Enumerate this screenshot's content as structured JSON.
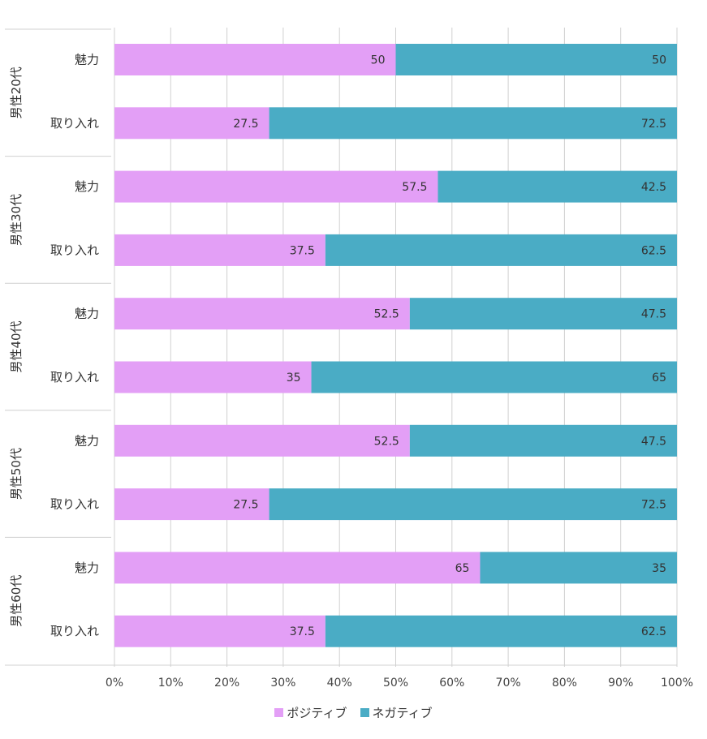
{
  "chart_data": {
    "type": "bar",
    "orientation": "horizontal",
    "stacked": true,
    "percent": true,
    "groups": [
      {
        "label": "男性20代",
        "rows": [
          {
            "label": "魅力",
            "values": [
              50,
              50
            ]
          },
          {
            "label": "取り入れ",
            "values": [
              27.5,
              72.5
            ]
          }
        ]
      },
      {
        "label": "男性30代",
        "rows": [
          {
            "label": "魅力",
            "values": [
              57.5,
              42.5
            ]
          },
          {
            "label": "取り入れ",
            "values": [
              37.5,
              62.5
            ]
          }
        ]
      },
      {
        "label": "男性40代",
        "rows": [
          {
            "label": "魅力",
            "values": [
              52.5,
              47.5
            ]
          },
          {
            "label": "取り入れ",
            "values": [
              35,
              65
            ]
          }
        ]
      },
      {
        "label": "男性50代",
        "rows": [
          {
            "label": "魅力",
            "values": [
              52.5,
              47.5
            ]
          },
          {
            "label": "取り入れ",
            "values": [
              27.5,
              72.5
            ]
          }
        ]
      },
      {
        "label": "男性60代",
        "rows": [
          {
            "label": "魅力",
            "values": [
              65,
              35
            ]
          },
          {
            "label": "取り入れ",
            "values": [
              37.5,
              62.5
            ]
          }
        ]
      }
    ],
    "series": [
      {
        "name": "ポジティブ",
        "color": "#e39ff6"
      },
      {
        "name": "ネガティブ",
        "color": "#4aacc5"
      }
    ],
    "x_ticks": [
      "0%",
      "10%",
      "20%",
      "30%",
      "40%",
      "50%",
      "60%",
      "70%",
      "80%",
      "90%",
      "100%"
    ],
    "xlim": [
      0,
      100
    ],
    "grid": true,
    "legend_position": "bottom"
  }
}
